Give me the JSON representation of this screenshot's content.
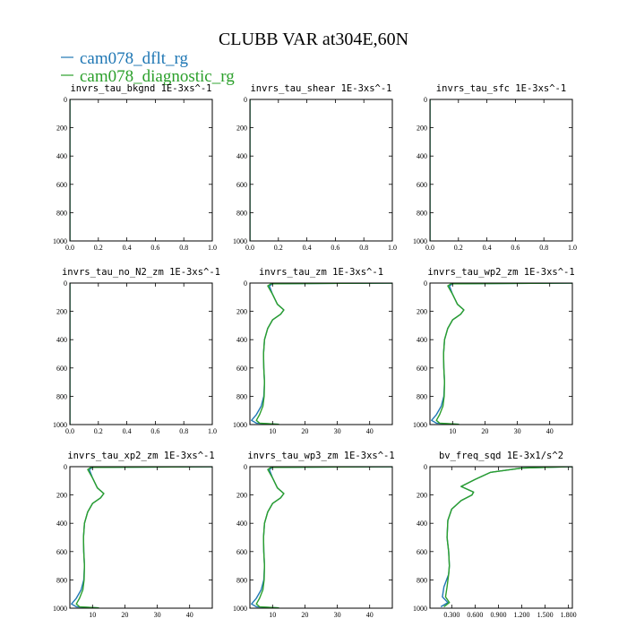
{
  "figure": {
    "title": "CLUBB VAR at304E,60N",
    "legend": [
      {
        "name": "cam078_dflt_rg",
        "color": "#1f77b4"
      },
      {
        "name": "cam078_diagnostic_rg",
        "color": "#2ca02c"
      }
    ]
  },
  "chart_data": [
    {
      "type": "line",
      "title": "invrs_tau_bkgnd",
      "unit": "1E-3xs^-1",
      "xlim": [
        0,
        1
      ],
      "ylim": [
        1000,
        0
      ],
      "xticks": [
        0,
        0.2,
        0.4,
        0.6,
        0.8,
        1.0
      ],
      "xticklabels": [
        "0.0",
        "0.2",
        "0.4",
        "0.6",
        "0.8",
        "1.0"
      ],
      "yticks": [
        0,
        200,
        400,
        600,
        800,
        1000
      ],
      "series": [
        {
          "name": "cam078_dflt_rg",
          "points": [
            [
              0,
              0
            ],
            [
              0,
              1000
            ]
          ]
        },
        {
          "name": "cam078_diagnostic_rg",
          "points": [
            [
              0,
              0
            ],
            [
              0,
              1000
            ]
          ]
        }
      ]
    },
    {
      "type": "line",
      "title": "invrs_tau_shear",
      "unit": "1E-3xs^-1",
      "xlim": [
        0,
        1
      ],
      "ylim": [
        1000,
        0
      ],
      "xticks": [
        0,
        0.2,
        0.4,
        0.6,
        0.8,
        1.0
      ],
      "xticklabels": [
        "0.0",
        "0.2",
        "0.4",
        "0.6",
        "0.8",
        "1.0"
      ],
      "yticks": [
        0,
        200,
        400,
        600,
        800,
        1000
      ],
      "series": [
        {
          "name": "cam078_dflt_rg",
          "points": [
            [
              0,
              0
            ],
            [
              0,
              1000
            ]
          ]
        },
        {
          "name": "cam078_diagnostic_rg",
          "points": [
            [
              0,
              0
            ],
            [
              0,
              1000
            ]
          ]
        }
      ]
    },
    {
      "type": "line",
      "title": "invrs_tau_sfc",
      "unit": "1E-3xs^-1",
      "xlim": [
        0,
        1
      ],
      "ylim": [
        1000,
        0
      ],
      "xticks": [
        0,
        0.2,
        0.4,
        0.6,
        0.8,
        1.0
      ],
      "xticklabels": [
        "0.0",
        "0.2",
        "0.4",
        "0.6",
        "0.8",
        "1.0"
      ],
      "yticks": [
        0,
        200,
        400,
        600,
        800,
        1000
      ],
      "series": [
        {
          "name": "cam078_dflt_rg",
          "points": [
            [
              0,
              0
            ],
            [
              0,
              1000
            ]
          ]
        },
        {
          "name": "cam078_diagnostic_rg",
          "points": [
            [
              0,
              0
            ],
            [
              0,
              1000
            ]
          ]
        }
      ]
    },
    {
      "type": "line",
      "title": "invrs_tau_no_N2_zm",
      "unit": "1E-3xs^-1",
      "xlim": [
        0,
        1
      ],
      "ylim": [
        1000,
        0
      ],
      "xticks": [
        0,
        0.2,
        0.4,
        0.6,
        0.8,
        1.0
      ],
      "xticklabels": [
        "0.0",
        "0.2",
        "0.4",
        "0.6",
        "0.8",
        "1.0"
      ],
      "yticks": [
        0,
        200,
        400,
        600,
        800,
        1000
      ],
      "series": [
        {
          "name": "cam078_dflt_rg",
          "points": [
            [
              0,
              0
            ],
            [
              0,
              1000
            ]
          ]
        },
        {
          "name": "cam078_diagnostic_rg",
          "points": [
            [
              0,
              0
            ],
            [
              0,
              1000
            ]
          ]
        }
      ]
    },
    {
      "type": "line",
      "title": "invrs_tau_zm",
      "unit": "1E-3xs^-1",
      "xlim": [
        3,
        47
      ],
      "ylim": [
        1000,
        0
      ],
      "xticks": [
        10,
        20,
        30,
        40
      ],
      "xticklabels": [
        "10",
        "20",
        "30",
        "40"
      ],
      "yticks": [
        0,
        200,
        400,
        600,
        800,
        1000
      ],
      "series": [
        {
          "name": "cam078_dflt_rg",
          "points": [
            [
              47,
              0
            ],
            [
              10,
              5
            ],
            [
              9,
              20
            ],
            [
              10,
              80
            ],
            [
              11.5,
              150
            ],
            [
              13.5,
              190
            ],
            [
              12.5,
              220
            ],
            [
              10,
              260
            ],
            [
              8.5,
              320
            ],
            [
              7.5,
              400
            ],
            [
              7.2,
              500
            ],
            [
              7.3,
              600
            ],
            [
              7.5,
              700
            ],
            [
              7.3,
              800
            ],
            [
              6.5,
              870
            ],
            [
              5,
              930
            ],
            [
              3.5,
              970
            ],
            [
              5,
              990
            ],
            [
              12,
              998
            ]
          ]
        },
        {
          "name": "cam078_diagnostic_rg",
          "points": [
            [
              47,
              0
            ],
            [
              9.5,
              5
            ],
            [
              8.5,
              20
            ],
            [
              10,
              80
            ],
            [
              11.5,
              150
            ],
            [
              13.5,
              190
            ],
            [
              12.5,
              220
            ],
            [
              10,
              260
            ],
            [
              8.5,
              320
            ],
            [
              7.5,
              400
            ],
            [
              7.2,
              500
            ],
            [
              7.3,
              600
            ],
            [
              7.5,
              700
            ],
            [
              7.4,
              800
            ],
            [
              7,
              870
            ],
            [
              6,
              930
            ],
            [
              5,
              970
            ],
            [
              6,
              990
            ],
            [
              12,
              998
            ]
          ]
        }
      ]
    },
    {
      "type": "line",
      "title": "invrs_tau_wp2_zm",
      "unit": "1E-3xs^-1",
      "xlim": [
        3,
        47
      ],
      "ylim": [
        1000,
        0
      ],
      "xticks": [
        10,
        20,
        30,
        40
      ],
      "xticklabels": [
        "10",
        "20",
        "30",
        "40"
      ],
      "yticks": [
        0,
        200,
        400,
        600,
        800,
        1000
      ],
      "series": [
        {
          "name": "cam078_dflt_rg",
          "points": [
            [
              47,
              0
            ],
            [
              10,
              5
            ],
            [
              9,
              20
            ],
            [
              10,
              80
            ],
            [
              11.5,
              150
            ],
            [
              13.5,
              190
            ],
            [
              12.5,
              220
            ],
            [
              10,
              260
            ],
            [
              8.5,
              320
            ],
            [
              7.5,
              400
            ],
            [
              7.2,
              500
            ],
            [
              7.3,
              600
            ],
            [
              7.5,
              700
            ],
            [
              7.3,
              800
            ],
            [
              6.5,
              870
            ],
            [
              5,
              930
            ],
            [
              3.5,
              970
            ],
            [
              5,
              990
            ],
            [
              12,
              998
            ]
          ]
        },
        {
          "name": "cam078_diagnostic_rg",
          "points": [
            [
              47,
              0
            ],
            [
              9.5,
              5
            ],
            [
              8.5,
              20
            ],
            [
              10,
              80
            ],
            [
              11.5,
              150
            ],
            [
              13.5,
              190
            ],
            [
              12.5,
              220
            ],
            [
              10,
              260
            ],
            [
              8.5,
              320
            ],
            [
              7.5,
              400
            ],
            [
              7.2,
              500
            ],
            [
              7.3,
              600
            ],
            [
              7.5,
              700
            ],
            [
              7.4,
              800
            ],
            [
              7,
              870
            ],
            [
              6,
              930
            ],
            [
              5,
              970
            ],
            [
              6,
              990
            ],
            [
              12,
              998
            ]
          ]
        }
      ]
    },
    {
      "type": "line",
      "title": "invrs_tau_xp2_zm",
      "unit": "1E-3xs^-1",
      "xlim": [
        3,
        47
      ],
      "ylim": [
        1000,
        0
      ],
      "xticks": [
        10,
        20,
        30,
        40
      ],
      "xticklabels": [
        "10",
        "20",
        "30",
        "40"
      ],
      "yticks": [
        0,
        200,
        400,
        600,
        800,
        1000
      ],
      "series": [
        {
          "name": "cam078_dflt_rg",
          "points": [
            [
              47,
              0
            ],
            [
              10,
              5
            ],
            [
              9,
              20
            ],
            [
              10,
              80
            ],
            [
              11.5,
              150
            ],
            [
              13.5,
              190
            ],
            [
              12.5,
              220
            ],
            [
              10,
              260
            ],
            [
              8.5,
              320
            ],
            [
              7.5,
              400
            ],
            [
              7.2,
              500
            ],
            [
              7.3,
              600
            ],
            [
              7.5,
              700
            ],
            [
              7.3,
              800
            ],
            [
              6.5,
              870
            ],
            [
              5,
              930
            ],
            [
              3.5,
              970
            ],
            [
              5,
              990
            ],
            [
              12,
              998
            ]
          ]
        },
        {
          "name": "cam078_diagnostic_rg",
          "points": [
            [
              47,
              0
            ],
            [
              9.5,
              5
            ],
            [
              8.5,
              20
            ],
            [
              10,
              80
            ],
            [
              11.5,
              150
            ],
            [
              13.5,
              190
            ],
            [
              12.5,
              220
            ],
            [
              10,
              260
            ],
            [
              8.5,
              320
            ],
            [
              7.5,
              400
            ],
            [
              7.2,
              500
            ],
            [
              7.3,
              600
            ],
            [
              7.5,
              700
            ],
            [
              7.4,
              800
            ],
            [
              7,
              870
            ],
            [
              6,
              930
            ],
            [
              5,
              970
            ],
            [
              6,
              990
            ],
            [
              12,
              998
            ]
          ]
        }
      ]
    },
    {
      "type": "line",
      "title": "invrs_tau_wp3_zm",
      "unit": "1E-3xs^-1",
      "xlim": [
        3,
        47
      ],
      "ylim": [
        1000,
        0
      ],
      "xticks": [
        10,
        20,
        30,
        40
      ],
      "xticklabels": [
        "10",
        "20",
        "30",
        "40"
      ],
      "yticks": [
        0,
        200,
        400,
        600,
        800,
        1000
      ],
      "series": [
        {
          "name": "cam078_dflt_rg",
          "points": [
            [
              47,
              0
            ],
            [
              10,
              5
            ],
            [
              9,
              20
            ],
            [
              10,
              80
            ],
            [
              11.5,
              150
            ],
            [
              13.5,
              190
            ],
            [
              12.5,
              220
            ],
            [
              10,
              260
            ],
            [
              8.5,
              320
            ],
            [
              7.5,
              400
            ],
            [
              7.2,
              500
            ],
            [
              7.3,
              600
            ],
            [
              7.5,
              700
            ],
            [
              7.3,
              800
            ],
            [
              6.5,
              870
            ],
            [
              5,
              930
            ],
            [
              3.5,
              970
            ],
            [
              5,
              990
            ],
            [
              12,
              998
            ]
          ]
        },
        {
          "name": "cam078_diagnostic_rg",
          "points": [
            [
              47,
              0
            ],
            [
              9.5,
              5
            ],
            [
              8.5,
              20
            ],
            [
              10,
              80
            ],
            [
              11.5,
              150
            ],
            [
              13.5,
              190
            ],
            [
              12.5,
              220
            ],
            [
              10,
              260
            ],
            [
              8.5,
              320
            ],
            [
              7.5,
              400
            ],
            [
              7.2,
              500
            ],
            [
              7.3,
              600
            ],
            [
              7.5,
              700
            ],
            [
              7.4,
              800
            ],
            [
              7,
              870
            ],
            [
              6,
              930
            ],
            [
              5,
              970
            ],
            [
              6,
              990
            ],
            [
              12,
              998
            ]
          ]
        }
      ]
    },
    {
      "type": "line",
      "title": "bv_freq_sqd",
      "unit": "1E-3x1/s^2",
      "xlim": [
        0.02,
        1.85
      ],
      "ylim": [
        1000,
        0
      ],
      "xticks": [
        0.3,
        0.6,
        0.9,
        1.2,
        1.5,
        1.8
      ],
      "xticklabels": [
        "0.300",
        "0.600",
        "0.900",
        "1.200",
        "1.500",
        "1.800"
      ],
      "yticks": [
        0,
        200,
        400,
        600,
        800,
        1000
      ],
      "series": [
        {
          "name": "cam078_dflt_rg",
          "points": [
            [
              1.85,
              0
            ],
            [
              1.2,
              10
            ],
            [
              0.8,
              40
            ],
            [
              0.6,
              90
            ],
            [
              0.42,
              140
            ],
            [
              0.58,
              180
            ],
            [
              0.56,
              200
            ],
            [
              0.42,
              240
            ],
            [
              0.3,
              300
            ],
            [
              0.25,
              380
            ],
            [
              0.24,
              500
            ],
            [
              0.26,
              600
            ],
            [
              0.27,
              700
            ],
            [
              0.26,
              760
            ],
            [
              0.2,
              850
            ],
            [
              0.18,
              920
            ],
            [
              0.25,
              960
            ],
            [
              0.16,
              990
            ]
          ]
        },
        {
          "name": "cam078_diagnostic_rg",
          "points": [
            [
              1.85,
              0
            ],
            [
              1.2,
              10
            ],
            [
              0.8,
              40
            ],
            [
              0.6,
              90
            ],
            [
              0.42,
              140
            ],
            [
              0.58,
              180
            ],
            [
              0.56,
              200
            ],
            [
              0.42,
              240
            ],
            [
              0.3,
              300
            ],
            [
              0.25,
              380
            ],
            [
              0.24,
              500
            ],
            [
              0.26,
              600
            ],
            [
              0.27,
              700
            ],
            [
              0.26,
              760
            ],
            [
              0.24,
              850
            ],
            [
              0.22,
              920
            ],
            [
              0.27,
              960
            ],
            [
              0.2,
              990
            ]
          ]
        }
      ]
    }
  ]
}
